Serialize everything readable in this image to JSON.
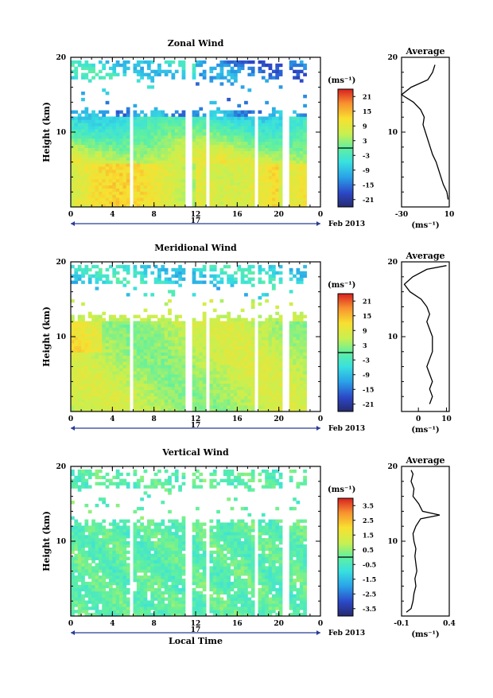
{
  "chart_data": [
    {
      "type": "heatmap",
      "title": "Zonal Wind",
      "ylabel": "Height (km)",
      "ylim": [
        0,
        20
      ],
      "yticks": [
        "10",
        "20"
      ],
      "xticks": [
        "0",
        "4",
        "8",
        "12",
        "16",
        "20",
        "0"
      ],
      "date_label": "17",
      "date_suffix": "Feb 2013",
      "colorbar": {
        "unit": "(ms⁻¹)",
        "range": [
          -24,
          24
        ],
        "ticks": [
          "21",
          "15",
          "9",
          "3",
          "-3",
          "-9",
          "-15",
          "-21"
        ]
      },
      "profile": {
        "title": "Average",
        "xlabel": "(ms⁻¹)",
        "xticks": [
          "-30",
          "10"
        ],
        "xlim": [
          -30,
          10
        ],
        "height_km": [
          1,
          2,
          3,
          4,
          5,
          6,
          7,
          8,
          9,
          10,
          11,
          12,
          13,
          14,
          15,
          16,
          17,
          18,
          19
        ],
        "values": [
          9,
          8,
          5,
          3,
          1,
          -1,
          -4,
          -6,
          -8,
          -10,
          -12,
          -11,
          -14,
          -20,
          -30,
          -22,
          -8,
          -4,
          -2
        ]
      }
    },
    {
      "type": "heatmap",
      "title": "Meridional Wind",
      "ylabel": "Height (km)",
      "ylim": [
        0,
        20
      ],
      "yticks": [
        "10",
        "20"
      ],
      "xticks": [
        "0",
        "4",
        "8",
        "12",
        "16",
        "20",
        "0"
      ],
      "date_label": "17",
      "date_suffix": "Feb 2013",
      "colorbar": {
        "unit": "(ms⁻¹)",
        "range": [
          -24,
          24
        ],
        "ticks": [
          "21",
          "15",
          "9",
          "3",
          "-3",
          "-9",
          "-15",
          "-21"
        ]
      },
      "profile": {
        "title": "Average",
        "xlabel": "(ms⁻¹)",
        "xticks": [
          "0",
          "10"
        ],
        "xlim": [
          -6,
          11
        ],
        "height_km": [
          1,
          2,
          3,
          4,
          5,
          6,
          7,
          8,
          9,
          10,
          11,
          12,
          13,
          14,
          15,
          16,
          17,
          18,
          19,
          19.5
        ],
        "values": [
          4,
          5,
          4,
          5,
          4,
          3,
          4,
          5,
          5,
          5,
          4,
          3,
          4,
          3,
          1,
          -3,
          -5,
          -2,
          3,
          10
        ]
      }
    },
    {
      "type": "heatmap",
      "title": "Vertical Wind",
      "xlabel": "Local Time",
      "ylabel": "Height (km)",
      "ylim": [
        0,
        20
      ],
      "yticks": [
        "10",
        "20"
      ],
      "xticks": [
        "0",
        "4",
        "8",
        "12",
        "16",
        "20",
        "0"
      ],
      "date_label": "17",
      "date_suffix": "Feb 2013",
      "colorbar": {
        "unit": "(ms⁻¹)",
        "range": [
          -4,
          4
        ],
        "ticks": [
          "3.5",
          "2.5",
          "1.5",
          "0.5",
          "-0.5",
          "-1.5",
          "-2.5",
          "-3.5"
        ]
      },
      "profile": {
        "title": "Average",
        "xlabel": "(ms⁻¹)",
        "xticks": [
          "-0.1",
          "0.4"
        ],
        "xlim": [
          -0.1,
          0.4
        ],
        "height_km": [
          0.5,
          1,
          2,
          3,
          4,
          5,
          6,
          7,
          8,
          9,
          10,
          11,
          12,
          13,
          13.5,
          14,
          15,
          16,
          17,
          18,
          19,
          19.5
        ],
        "values": [
          -0.05,
          0,
          0.02,
          0.03,
          0.05,
          0.04,
          0.06,
          0.05,
          0.04,
          0.05,
          0.03,
          0.02,
          0.05,
          0.1,
          0.3,
          0.12,
          0.08,
          0.02,
          0.03,
          0.0,
          0.02,
          0.0
        ]
      }
    }
  ]
}
